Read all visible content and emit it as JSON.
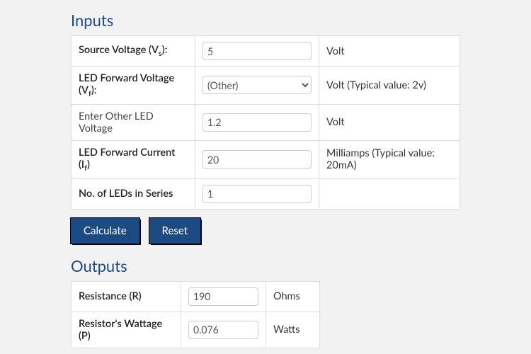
{
  "headings": {
    "inputs": "Inputs",
    "outputs": "Outputs"
  },
  "inputs": {
    "source_voltage": {
      "label": "Source Voltage (V",
      "sub": "s",
      "label_after": "):",
      "value": "5",
      "unit": "Volt",
      "bold": true
    },
    "forward_voltage": {
      "label": "LED Forward Voltage (V",
      "sub": "f",
      "label_after": "):",
      "selected": "(Other)",
      "unit": "Volt (Typical value: 2v)",
      "bold": true
    },
    "other_voltage": {
      "label": "Enter Other LED Voltage",
      "value": "1.2",
      "unit": "Volt",
      "bold": false
    },
    "forward_current": {
      "label": "LED Forward Current (I",
      "sub": "f",
      "label_after": ")",
      "value": "20",
      "unit": "Milliamps (Typical value: 20mA)",
      "bold": true
    },
    "num_leds": {
      "label": "No. of LEDs in Series",
      "value": "1",
      "unit": "",
      "bold": true
    }
  },
  "buttons": {
    "calculate": "Calculate",
    "reset": "Reset"
  },
  "outputs": {
    "resistance": {
      "label": "Resistance (R)",
      "value": "190",
      "unit": "Ohms"
    },
    "wattage": {
      "label": "Resistor's Wattage (P)",
      "value": "0.076",
      "unit": "Watts"
    }
  },
  "colors": {
    "heading": "#1b4b82",
    "button_bg": "#1b4b82",
    "page_bg": "#f2f2f2",
    "border": "#dddddd"
  }
}
